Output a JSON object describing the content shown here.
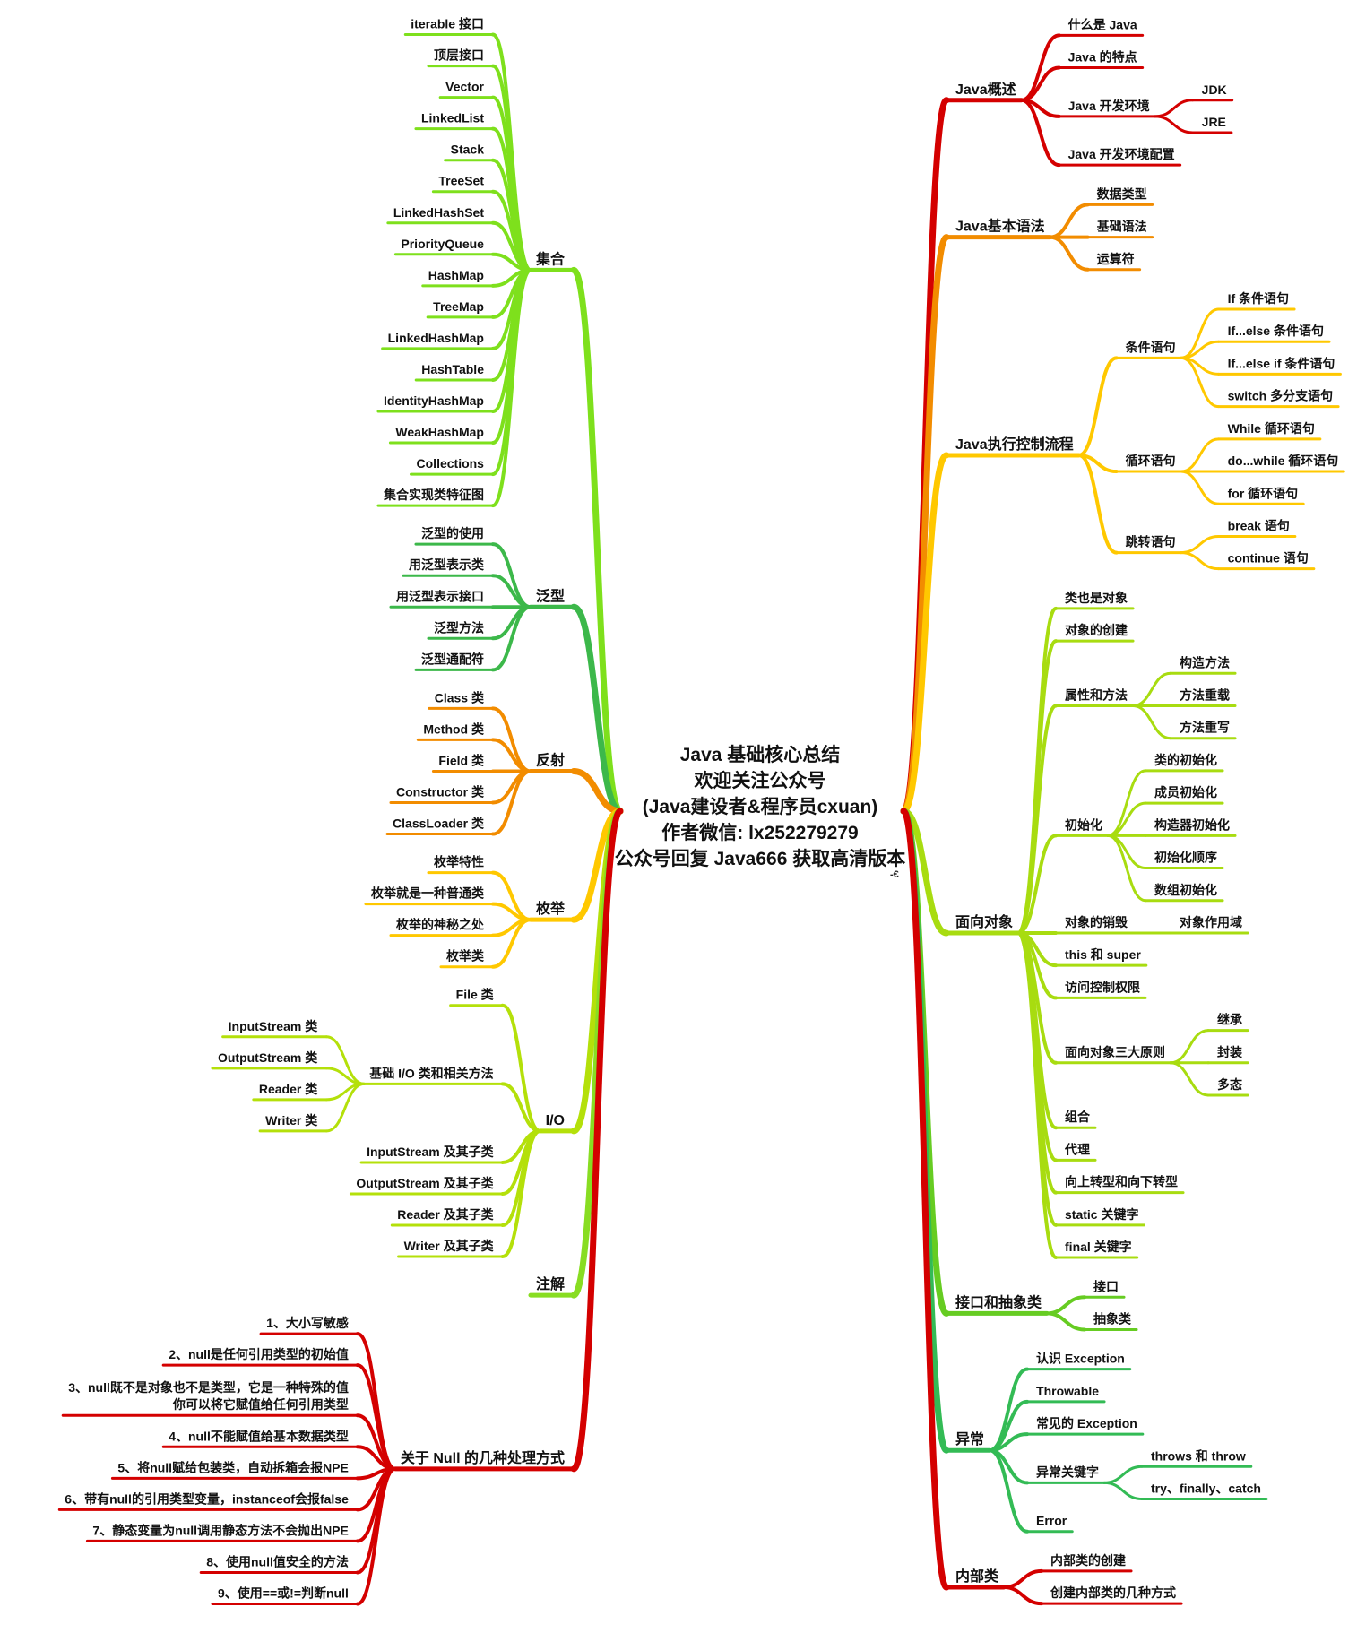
{
  "center": {
    "lines": [
      "Java 基础核心总结",
      "欢迎关注公众号",
      "(Java建设者&程序员cxuan)",
      "作者微信: lx252279279",
      "公众号回复 Java666 获取高清版本"
    ],
    "mark": "-€"
  },
  "left": [
    {
      "label": "集合",
      "color": "#7ee01c",
      "children": [
        {
          "label": "iterable 接口"
        },
        {
          "label": "顶层接口"
        },
        {
          "label": "Vector"
        },
        {
          "label": "LinkedList"
        },
        {
          "label": "Stack"
        },
        {
          "label": "TreeSet"
        },
        {
          "label": "LinkedHashSet"
        },
        {
          "label": "PriorityQueue"
        },
        {
          "label": "HashMap"
        },
        {
          "label": "TreeMap"
        },
        {
          "label": "LinkedHashMap"
        },
        {
          "label": "HashTable"
        },
        {
          "label": "IdentityHashMap"
        },
        {
          "label": "WeakHashMap"
        },
        {
          "label": "Collections"
        },
        {
          "label": "集合实现类特征图"
        }
      ]
    },
    {
      "label": "泛型",
      "color": "#3cb84a",
      "children": [
        {
          "label": "泛型的使用"
        },
        {
          "label": "用泛型表示类"
        },
        {
          "label": "用泛型表示接口"
        },
        {
          "label": "泛型方法"
        },
        {
          "label": "泛型通配符"
        }
      ]
    },
    {
      "label": "反射",
      "color": "#f28c00",
      "children": [
        {
          "label": "Class 类"
        },
        {
          "label": "Method 类"
        },
        {
          "label": "Field 类"
        },
        {
          "label": "Constructor 类"
        },
        {
          "label": "ClassLoader 类"
        }
      ]
    },
    {
      "label": "枚举",
      "color": "#ffc800",
      "children": [
        {
          "label": "枚举特性"
        },
        {
          "label": "枚举就是一种普通类"
        },
        {
          "label": "枚举的神秘之处"
        },
        {
          "label": "枚举类"
        }
      ]
    },
    {
      "label": "I/O",
      "color": "#b4e00a",
      "children": [
        {
          "label": "File 类"
        },
        {
          "label": "基础 I/O 类和相关方法",
          "children": [
            {
              "label": "InputStream 类"
            },
            {
              "label": "OutputStream 类"
            },
            {
              "label": "Reader 类"
            },
            {
              "label": "Writer 类"
            }
          ]
        },
        {
          "label": "InputStream 及其子类"
        },
        {
          "label": "OutputStream 及其子类"
        },
        {
          "label": "Reader 及其子类"
        },
        {
          "label": "Writer 及其子类"
        }
      ]
    },
    {
      "label": "注解",
      "color": "#88dd22"
    },
    {
      "label": "关于 Null 的几种处理方式",
      "color": "#d40000",
      "children": [
        {
          "label": "1、大小写敏感"
        },
        {
          "label": "2、null是任何引用类型的初始值"
        },
        {
          "label": "3、null既不是对象也不是类型，它是一种特殊的值\n你可以将它赋值给任何引用类型"
        },
        {
          "label": "4、null不能赋值给基本数据类型"
        },
        {
          "label": "5、将null赋给包装类，自动拆箱会报NPE"
        },
        {
          "label": "6、带有null的引用类型变量，instanceof会报false"
        },
        {
          "label": "7、静态变量为null调用静态方法不会抛出NPE"
        },
        {
          "label": "8、使用null值安全的方法"
        },
        {
          "label": "9、使用==或!=判断null"
        }
      ]
    }
  ],
  "right": [
    {
      "label": "Java概述",
      "color": "#d40000",
      "children": [
        {
          "label": "什么是 Java"
        },
        {
          "label": "Java 的特点"
        },
        {
          "label": "Java 开发环境",
          "children": [
            {
              "label": "JDK"
            },
            {
              "label": "JRE"
            }
          ]
        },
        {
          "label": "Java 开发环境配置"
        }
      ]
    },
    {
      "label": "Java基本语法",
      "color": "#f28c00",
      "children": [
        {
          "label": "数据类型"
        },
        {
          "label": "基础语法"
        },
        {
          "label": "运算符"
        }
      ]
    },
    {
      "label": "Java执行控制流程",
      "color": "#ffc800",
      "children": [
        {
          "label": "条件语句",
          "children": [
            {
              "label": "If 条件语句"
            },
            {
              "label": "If...else 条件语句"
            },
            {
              "label": "If...else if 条件语句"
            },
            {
              "label": "switch 多分支语句"
            }
          ]
        },
        {
          "label": "循环语句",
          "children": [
            {
              "label": "While 循环语句"
            },
            {
              "label": "do...while 循环语句"
            },
            {
              "label": "for 循环语句"
            }
          ]
        },
        {
          "label": "跳转语句",
          "children": [
            {
              "label": "break 语句"
            },
            {
              "label": "continue 语句"
            }
          ]
        }
      ]
    },
    {
      "label": "面向对象",
      "color": "#a8dc10",
      "children": [
        {
          "label": "类也是对象"
        },
        {
          "label": "对象的创建"
        },
        {
          "label": "属性和方法",
          "children": [
            {
              "label": "构造方法"
            },
            {
              "label": "方法重载"
            },
            {
              "label": "方法重写"
            }
          ]
        },
        {
          "label": "初始化",
          "children": [
            {
              "label": "类的初始化"
            },
            {
              "label": "成员初始化"
            },
            {
              "label": "构造器初始化"
            },
            {
              "label": "初始化顺序"
            },
            {
              "label": "数组初始化"
            }
          ]
        },
        {
          "label": "对象的销毁",
          "children": [
            {
              "label": "对象作用域"
            }
          ]
        },
        {
          "label": "this 和 super"
        },
        {
          "label": "访问控制权限"
        },
        {
          "label": "面向对象三大原则",
          "children": [
            {
              "label": "继承"
            },
            {
              "label": "封装"
            },
            {
              "label": "多态"
            }
          ]
        },
        {
          "label": "组合"
        },
        {
          "label": "代理"
        },
        {
          "label": "向上转型和向下转型"
        },
        {
          "label": "static 关键字"
        },
        {
          "label": "final 关键字"
        }
      ]
    },
    {
      "label": "接口和抽象类",
      "color": "#66cc22",
      "children": [
        {
          "label": "接口"
        },
        {
          "label": "抽象类"
        }
      ]
    },
    {
      "label": "异常",
      "color": "#33bb55",
      "children": [
        {
          "label": "认识 Exception"
        },
        {
          "label": "Throwable"
        },
        {
          "label": "常见的 Exception"
        },
        {
          "label": "异常关键字",
          "children": [
            {
              "label": "throws 和 throw"
            },
            {
              "label": "try、finally、catch"
            }
          ]
        },
        {
          "label": "Error"
        }
      ]
    },
    {
      "label": "内部类",
      "color": "#d40000",
      "children": [
        {
          "label": "内部类的创建"
        },
        {
          "label": "创建内部类的几种方式"
        }
      ]
    }
  ]
}
